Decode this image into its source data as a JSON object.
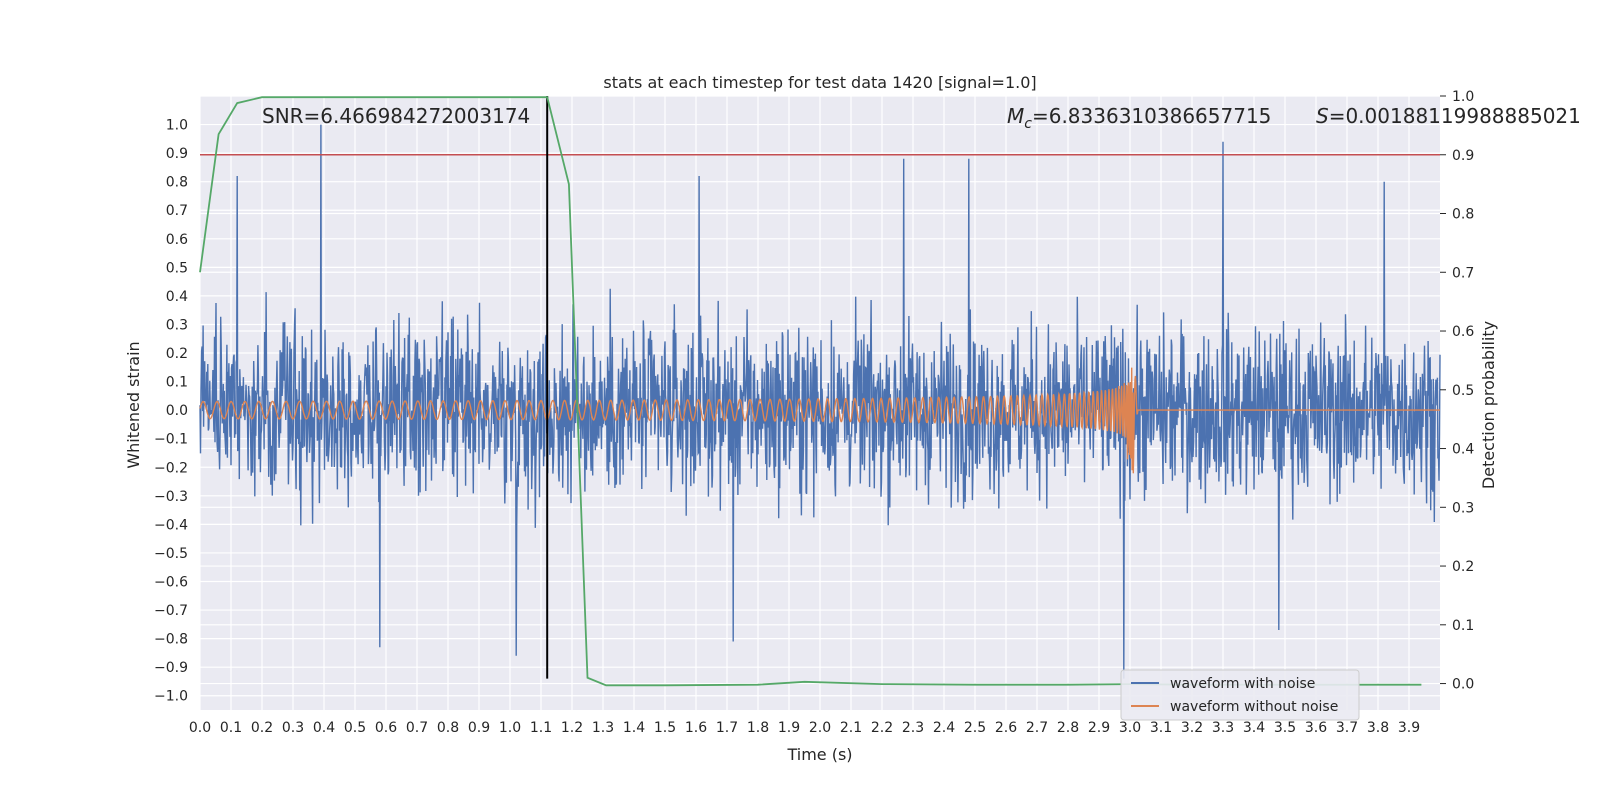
{
  "chart_data": {
    "type": "line",
    "title": "stats at each timestep for test data 1420 [signal=1.0]",
    "xlabel": "Time (s)",
    "ylabel": "Whitened strain",
    "y2label": "Detection probability",
    "xlim": [
      0.0,
      4.0
    ],
    "ylim": [
      -1.05,
      1.1
    ],
    "y2lim": [
      -0.045,
      1.0
    ],
    "x_ticks": [
      "0.0",
      "0.1",
      "0.2",
      "0.3",
      "0.4",
      "0.5",
      "0.6",
      "0.7",
      "0.8",
      "0.9",
      "1.0",
      "1.1",
      "1.2",
      "1.3",
      "1.4",
      "1.5",
      "1.6",
      "1.7",
      "1.8",
      "1.9",
      "2.0",
      "2.1",
      "2.2",
      "2.3",
      "2.4",
      "2.5",
      "2.6",
      "2.7",
      "2.8",
      "2.9",
      "3.0",
      "3.1",
      "3.2",
      "3.3",
      "3.4",
      "3.5",
      "3.6",
      "3.7",
      "3.8",
      "3.9"
    ],
    "y_ticks": [
      "−1.0",
      "−0.9",
      "−0.8",
      "−0.7",
      "−0.6",
      "−0.5",
      "−0.4",
      "−0.3",
      "−0.2",
      "−0.1",
      "0.0",
      "0.1",
      "0.2",
      "0.3",
      "0.4",
      "0.5",
      "0.6",
      "0.7",
      "0.8",
      "0.9",
      "1.0"
    ],
    "y2_ticks": [
      "0.0",
      "0.1",
      "0.2",
      "0.3",
      "0.4",
      "0.5",
      "0.6",
      "0.7",
      "0.8",
      "0.9",
      "1.0"
    ],
    "grid": true,
    "legend_position": "bottom-right",
    "annotations": {
      "snr": "SNR=6.466984272003174",
      "mc_symbol": "M",
      "mc_sub": "c",
      "mc_value": "=6.8336310386657715",
      "s_symbol": "S",
      "s_value": "=0.0018811998888502‍1"
    },
    "series": [
      {
        "name": "waveform with noise",
        "color": "#4c72b0",
        "note_values": "dense noise signal spanning roughly -0.9 to 1.0",
        "peaks": [
          [
            0.12,
            0.82
          ],
          [
            0.39,
            1.0
          ],
          [
            1.61,
            0.82
          ],
          [
            2.27,
            0.88
          ],
          [
            2.48,
            0.88
          ],
          [
            3.3,
            0.94
          ],
          [
            3.82,
            0.8
          ]
        ],
        "troughs": [
          [
            0.58,
            -0.83
          ],
          [
            1.02,
            -0.86
          ],
          [
            1.72,
            -0.81
          ],
          [
            2.98,
            -0.94
          ],
          [
            3.48,
            -0.77
          ]
        ]
      },
      {
        "name": "waveform without noise",
        "color": "#dd8452",
        "chirp_start": 0.0,
        "merger_time": 3.01,
        "amplitude_start": 0.03,
        "amplitude_peak": 0.16,
        "amplitude_trough": -0.24
      }
    ],
    "detection_probability": {
      "color": "#55a868",
      "x": [
        0.0,
        0.06,
        0.12,
        0.2,
        0.5,
        1.12,
        1.19,
        1.25,
        1.31,
        1.5,
        1.8,
        1.95,
        2.2,
        2.5,
        2.8,
        3.0,
        3.2,
        3.5,
        3.94
      ],
      "y": [
        0.7,
        0.935,
        0.988,
        0.998,
        0.998,
        0.998,
        0.85,
        0.01,
        -0.003,
        -0.003,
        -0.002,
        0.003,
        -0.001,
        -0.002,
        -0.002,
        -0.001,
        -0.002,
        -0.002,
        -0.002
      ]
    },
    "threshold": {
      "value": 0.9,
      "axis": "right",
      "color": "#c44e52"
    },
    "marker_line": {
      "x": 1.12,
      "color": "#000000"
    }
  }
}
